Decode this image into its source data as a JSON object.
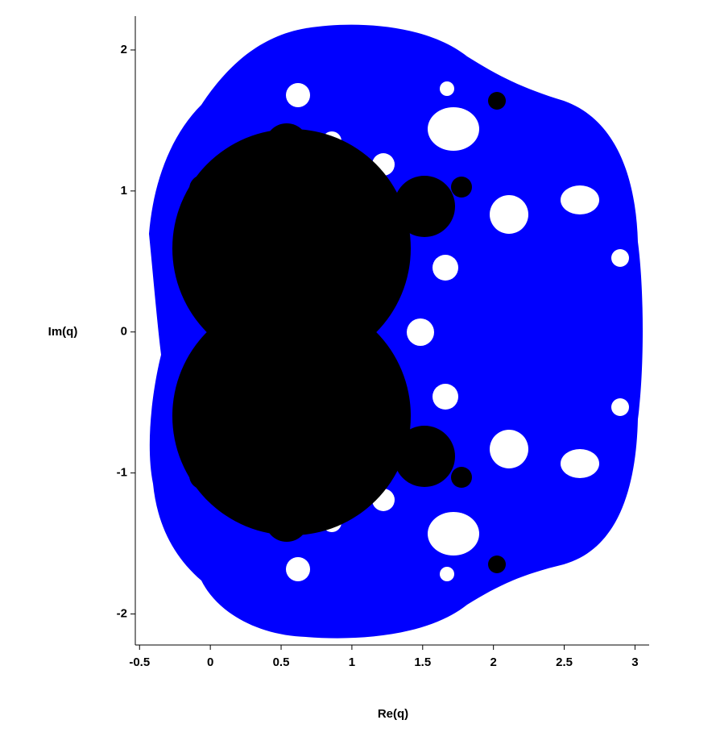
{
  "chart_data": {
    "type": "fractal",
    "xlabel": "Re(q)",
    "ylabel": "Im(q)",
    "xlim": [
      -0.53,
      3.1
    ],
    "ylim": [
      -2.22,
      2.24
    ],
    "xticks": [
      -0.5,
      0,
      0.5,
      1,
      1.5,
      2,
      2.5,
      3
    ],
    "yticks": [
      -2,
      -1,
      0,
      1,
      2
    ]
  }
}
